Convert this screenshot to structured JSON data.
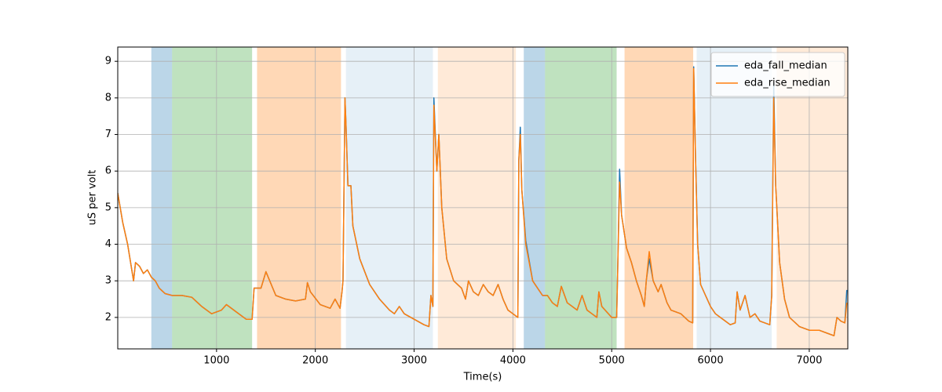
{
  "chart_data": {
    "type": "line",
    "xlabel": "Time(s)",
    "ylabel": "uS per volt",
    "xlim": [
      0,
      7390
    ],
    "ylim": [
      1.14,
      9.39
    ],
    "xticks": [
      1000,
      2000,
      3000,
      4000,
      5000,
      6000,
      7000
    ],
    "yticks": [
      2,
      3,
      4,
      5,
      6,
      7,
      8,
      9
    ],
    "grid": true,
    "legend": "upper right",
    "spans": [
      {
        "start": 340,
        "end": 550,
        "color": "rgba(31,119,180,0.3)"
      },
      {
        "start": 550,
        "end": 1360,
        "color": "rgba(44,160,44,0.3)"
      },
      {
        "start": 1410,
        "end": 2260,
        "color": "rgba(255,127,14,0.3)"
      },
      {
        "start": 2310,
        "end": 3190,
        "color": "rgba(31,119,180,0.11)"
      },
      {
        "start": 3240,
        "end": 4030,
        "color": "rgba(255,127,14,0.16)"
      },
      {
        "start": 4110,
        "end": 4325,
        "color": "rgba(31,119,180,0.3)"
      },
      {
        "start": 4325,
        "end": 5050,
        "color": "rgba(44,160,44,0.3)"
      },
      {
        "start": 5130,
        "end": 5825,
        "color": "rgba(255,127,14,0.3)"
      },
      {
        "start": 5860,
        "end": 6620,
        "color": "rgba(31,119,180,0.11)"
      },
      {
        "start": 6670,
        "end": 7390,
        "color": "rgba(255,127,14,0.16)"
      }
    ],
    "x": [
      0,
      50,
      100,
      130,
      160,
      180,
      220,
      260,
      300,
      340,
      380,
      420,
      480,
      550,
      650,
      750,
      850,
      950,
      1050,
      1100,
      1200,
      1300,
      1360,
      1380,
      1450,
      1500,
      1600,
      1700,
      1800,
      1900,
      1920,
      1950,
      2050,
      2150,
      2200,
      2250,
      2270,
      2280,
      2300,
      2310,
      2330,
      2360,
      2380,
      2450,
      2550,
      2650,
      2750,
      2800,
      2850,
      2900,
      3000,
      3100,
      3150,
      3170,
      3190,
      3200,
      3230,
      3250,
      3280,
      3330,
      3400,
      3480,
      3520,
      3550,
      3600,
      3650,
      3700,
      3750,
      3800,
      3850,
      3900,
      3950,
      4000,
      4050,
      4060,
      4075,
      4090,
      4130,
      4200,
      4250,
      4300,
      4350,
      4400,
      4450,
      4490,
      4550,
      4650,
      4700,
      4750,
      4800,
      4850,
      4870,
      4900,
      5000,
      5050,
      5060,
      5080,
      5100,
      5150,
      5200,
      5250,
      5300,
      5330,
      5350,
      5380,
      5420,
      5470,
      5500,
      5560,
      5600,
      5700,
      5780,
      5820,
      5830,
      5850,
      5870,
      5900,
      5950,
      6000,
      6050,
      6100,
      6150,
      6200,
      6250,
      6270,
      6300,
      6350,
      6400,
      6450,
      6500,
      6600,
      6620,
      6640,
      6660,
      6700,
      6750,
      6800,
      6900,
      7000,
      7100,
      7200,
      7250,
      7280,
      7320,
      7360,
      7380
    ],
    "series": [
      {
        "name": "eda_fall_median",
        "color": "#1f77b4",
        "values": [
          5.4,
          4.6,
          4.0,
          3.5,
          3.0,
          3.5,
          3.4,
          3.2,
          3.3,
          3.1,
          3.0,
          2.8,
          2.65,
          2.6,
          2.6,
          2.55,
          2.3,
          2.1,
          2.2,
          2.35,
          2.15,
          1.95,
          1.95,
          2.8,
          2.8,
          3.25,
          2.6,
          2.5,
          2.45,
          2.5,
          2.95,
          2.7,
          2.35,
          2.25,
          2.5,
          2.25,
          2.7,
          3.0,
          8.0,
          7.3,
          5.6,
          5.6,
          4.5,
          3.6,
          2.9,
          2.5,
          2.2,
          2.1,
          2.3,
          2.1,
          1.95,
          1.8,
          1.75,
          2.6,
          2.3,
          8.0,
          6.0,
          7.0,
          5.0,
          3.6,
          3.0,
          2.8,
          2.5,
          3.0,
          2.7,
          2.6,
          2.9,
          2.7,
          2.6,
          2.9,
          2.5,
          2.2,
          2.1,
          2.0,
          6.3,
          7.2,
          5.5,
          4.1,
          3.0,
          2.8,
          2.6,
          2.6,
          2.4,
          2.3,
          2.85,
          2.4,
          2.2,
          2.6,
          2.2,
          2.1,
          2.0,
          2.7,
          2.3,
          2.0,
          2.0,
          3.2,
          6.05,
          4.8,
          3.9,
          3.5,
          3.0,
          2.6,
          2.3,
          3.0,
          3.6,
          3.0,
          2.7,
          2.9,
          2.4,
          2.2,
          2.1,
          1.9,
          1.85,
          8.85,
          6.25,
          4.0,
          2.9,
          2.6,
          2.3,
          2.1,
          2.0,
          1.9,
          1.8,
          1.85,
          2.7,
          2.2,
          2.6,
          2.0,
          2.1,
          1.9,
          1.8,
          2.6,
          8.4,
          5.6,
          3.5,
          2.5,
          2.0,
          1.75,
          1.65,
          1.65,
          1.55,
          1.5,
          2.0,
          1.9,
          1.85,
          2.75
        ]
      },
      {
        "name": "eda_rise_median",
        "color": "#ff7f0e",
        "values": [
          5.4,
          4.6,
          4.0,
          3.5,
          3.0,
          3.5,
          3.4,
          3.2,
          3.3,
          3.1,
          3.0,
          2.8,
          2.65,
          2.6,
          2.6,
          2.55,
          2.3,
          2.1,
          2.2,
          2.35,
          2.15,
          1.95,
          1.95,
          2.8,
          2.8,
          3.25,
          2.6,
          2.5,
          2.45,
          2.5,
          2.95,
          2.7,
          2.35,
          2.25,
          2.5,
          2.25,
          2.7,
          3.0,
          8.0,
          7.3,
          5.6,
          5.6,
          4.5,
          3.6,
          2.9,
          2.5,
          2.2,
          2.1,
          2.3,
          2.1,
          1.95,
          1.8,
          1.75,
          2.6,
          2.3,
          7.8,
          6.0,
          7.0,
          5.0,
          3.6,
          3.0,
          2.8,
          2.5,
          3.0,
          2.7,
          2.6,
          2.9,
          2.7,
          2.6,
          2.9,
          2.5,
          2.2,
          2.1,
          2.0,
          6.3,
          7.0,
          5.5,
          4.0,
          3.0,
          2.8,
          2.6,
          2.6,
          2.4,
          2.3,
          2.85,
          2.4,
          2.2,
          2.6,
          2.2,
          2.1,
          2.0,
          2.7,
          2.3,
          2.0,
          2.0,
          3.2,
          5.7,
          4.8,
          3.9,
          3.5,
          3.0,
          2.6,
          2.3,
          3.0,
          3.8,
          3.0,
          2.7,
          2.9,
          2.4,
          2.2,
          2.1,
          1.9,
          1.85,
          8.8,
          6.2,
          4.0,
          2.9,
          2.6,
          2.3,
          2.1,
          2.0,
          1.9,
          1.8,
          1.85,
          2.7,
          2.2,
          2.6,
          2.0,
          2.1,
          1.9,
          1.8,
          2.6,
          8.0,
          5.6,
          3.5,
          2.5,
          2.0,
          1.75,
          1.65,
          1.65,
          1.55,
          1.5,
          2.0,
          1.9,
          1.85,
          2.4
        ]
      }
    ]
  }
}
